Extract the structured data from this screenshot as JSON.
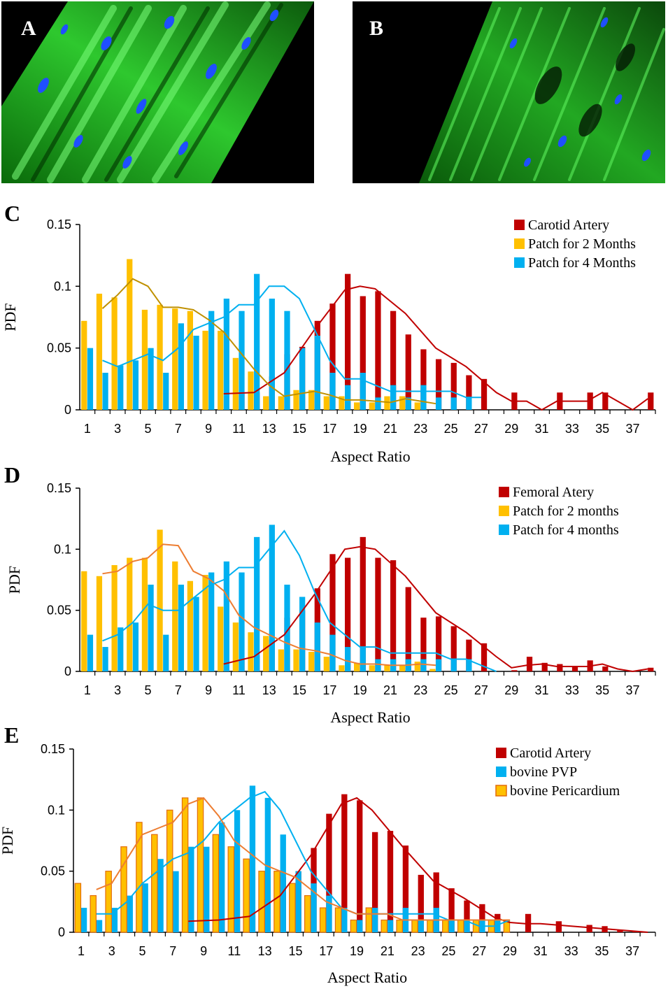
{
  "images": {
    "a": {
      "label": "A"
    },
    "b": {
      "label": "B"
    }
  },
  "colors": {
    "carotid": "#C00000",
    "patch2": "#FFC000",
    "patch4": "#00B0F0",
    "pvp": "#00B0F0",
    "pericardium": "#FFC000",
    "pericardium_border": "#E36C09",
    "fit_patch2_c": "#BF9000",
    "fit_patch2_d": "#ED7D31",
    "fit_pericardium": "#ED7D31",
    "fit_red": "#C00000",
    "fit_blue": "#00B0F0"
  },
  "chart_data": [
    {
      "type": "bar",
      "panel": "C",
      "xlabel": "Aspect Ratio",
      "ylabel": "PDF",
      "ylim": [
        0,
        0.15
      ],
      "yticks": [
        "0",
        "0.05",
        "0.1",
        "0.15"
      ],
      "xlim": [
        0.5,
        38.5
      ],
      "xticks": [
        1,
        3,
        5,
        7,
        9,
        11,
        13,
        15,
        17,
        19,
        21,
        23,
        25,
        27,
        29,
        31,
        33,
        35,
        37
      ],
      "legend_position": "top-right",
      "series": [
        {
          "name": "Carotid Artery",
          "color_key": "carotid",
          "x": [
            11,
            12,
            13,
            14,
            15,
            16,
            17,
            18,
            19,
            20,
            21,
            22,
            23,
            24,
            25,
            26,
            27,
            29,
            32,
            34,
            35,
            38
          ],
          "values": [
            0.014,
            0.014,
            0.027,
            0.045,
            0.051,
            0.072,
            0.086,
            0.11,
            0.092,
            0.096,
            0.08,
            0.061,
            0.049,
            0.041,
            0.038,
            0.028,
            0.025,
            0.014,
            0.014,
            0.014,
            0.014,
            0.014
          ],
          "fit_x": [
            10,
            12,
            14,
            16,
            18,
            19,
            20,
            22,
            24,
            26,
            28,
            29,
            30,
            31,
            32,
            34,
            35,
            36,
            37,
            38
          ],
          "fit": [
            0.013,
            0.014,
            0.03,
            0.065,
            0.097,
            0.1,
            0.098,
            0.078,
            0.05,
            0.035,
            0.014,
            0.007,
            0.007,
            0.0,
            0.007,
            0.007,
            0.014,
            0.007,
            0.0,
            0.009
          ],
          "fit_color_key": "fit_red"
        },
        {
          "name": "Patch for 2 Months",
          "color_key": "patch2",
          "x": [
            1,
            2,
            3,
            4,
            5,
            6,
            7,
            8,
            9,
            10,
            11,
            12,
            13,
            14,
            15,
            16,
            17,
            18,
            19,
            20,
            21,
            22,
            23
          ],
          "values": [
            0.072,
            0.094,
            0.091,
            0.122,
            0.081,
            0.085,
            0.082,
            0.08,
            0.064,
            0.064,
            0.042,
            0.031,
            0.011,
            0.011,
            0.016,
            0.016,
            0.011,
            0.011,
            0.006,
            0.006,
            0.011,
            0.011,
            0.006
          ],
          "fit_x": [
            2,
            3,
            4,
            5,
            6,
            7,
            8,
            9,
            10,
            11,
            12,
            13,
            14,
            15,
            16,
            17,
            18,
            19,
            20,
            21,
            22,
            23,
            24
          ],
          "fit": [
            0.082,
            0.093,
            0.106,
            0.1,
            0.083,
            0.083,
            0.081,
            0.073,
            0.063,
            0.048,
            0.033,
            0.02,
            0.011,
            0.013,
            0.015,
            0.012,
            0.008,
            0.008,
            0.007,
            0.006,
            0.009,
            0.007,
            0.005
          ],
          "fit_color_key": "fit_patch2_c"
        },
        {
          "name": "Patch for 4 Months",
          "color_key": "patch4",
          "x": [
            1,
            2,
            3,
            4,
            5,
            6,
            7,
            8,
            9,
            10,
            11,
            12,
            13,
            14,
            15,
            16,
            17,
            18,
            19,
            20,
            21,
            22,
            23,
            24,
            25,
            26
          ],
          "values": [
            0.05,
            0.03,
            0.036,
            0.04,
            0.05,
            0.03,
            0.07,
            0.06,
            0.08,
            0.09,
            0.08,
            0.11,
            0.09,
            0.08,
            0.05,
            0.06,
            0.03,
            0.02,
            0.03,
            0.01,
            0.02,
            0.01,
            0.02,
            0.01,
            0.01,
            0.01
          ],
          "fit_x": [
            2,
            3,
            4,
            5,
            6,
            7,
            8,
            9,
            10,
            11,
            12,
            13,
            14,
            15,
            16,
            17,
            18,
            19,
            20,
            21,
            22,
            23,
            24,
            25,
            26,
            27
          ],
          "fit": [
            0.04,
            0.035,
            0.04,
            0.045,
            0.04,
            0.05,
            0.065,
            0.07,
            0.075,
            0.085,
            0.085,
            0.1,
            0.1,
            0.09,
            0.065,
            0.04,
            0.025,
            0.025,
            0.02,
            0.015,
            0.015,
            0.015,
            0.015,
            0.015,
            0.01,
            0.01
          ],
          "fit_color_key": "fit_blue"
        }
      ]
    },
    {
      "type": "bar",
      "panel": "D",
      "xlabel": "Aspect Ratio",
      "ylabel": "PDF",
      "ylim": [
        0,
        0.15
      ],
      "yticks": [
        "0",
        "0.05",
        "0.1",
        "0.15"
      ],
      "xlim": [
        0.5,
        38.5
      ],
      "xticks": [
        1,
        3,
        5,
        7,
        9,
        11,
        13,
        15,
        17,
        19,
        21,
        23,
        25,
        27,
        29,
        31,
        33,
        35,
        37
      ],
      "legend_position": "top-right",
      "series": [
        {
          "name": "Femoral Atery",
          "color_key": "carotid",
          "x": [
            10,
            11,
            12,
            13,
            14,
            15,
            16,
            17,
            18,
            19,
            20,
            21,
            22,
            23,
            24,
            25,
            26,
            27,
            29,
            30,
            31,
            32,
            33,
            34,
            35,
            38
          ],
          "values": [
            0.007,
            0.01,
            0.013,
            0.026,
            0.044,
            0.05,
            0.068,
            0.096,
            0.093,
            0.11,
            0.093,
            0.091,
            0.069,
            0.044,
            0.045,
            0.037,
            0.026,
            0.023,
            0.001,
            0.012,
            0.007,
            0.006,
            0.004,
            0.009,
            0.004,
            0.003
          ],
          "fit_x": [
            10,
            12,
            14,
            16,
            18,
            19,
            20,
            22,
            24,
            26,
            28,
            29,
            30,
            31,
            32,
            34,
            35,
            36,
            37,
            38
          ],
          "fit": [
            0.006,
            0.012,
            0.03,
            0.063,
            0.1,
            0.102,
            0.1,
            0.078,
            0.048,
            0.032,
            0.012,
            0.003,
            0.005,
            0.006,
            0.004,
            0.004,
            0.006,
            0.002,
            0.0,
            0.002
          ],
          "fit_color_key": "fit_red"
        },
        {
          "name": "Patch for 2 months",
          "color_key": "patch2",
          "x": [
            1,
            2,
            3,
            4,
            5,
            6,
            7,
            8,
            9,
            10,
            11,
            12,
            13,
            14,
            15,
            16,
            17,
            18,
            19,
            20,
            21,
            22,
            23,
            24
          ],
          "values": [
            0.082,
            0.078,
            0.087,
            0.093,
            0.093,
            0.116,
            0.09,
            0.074,
            0.079,
            0.053,
            0.04,
            0.032,
            0.029,
            0.018,
            0.018,
            0.016,
            0.012,
            0.005,
            0.007,
            0.005,
            0.005,
            0.005,
            0.008,
            0.002
          ],
          "fit_x": [
            2,
            3,
            4,
            5,
            6,
            7,
            8,
            9,
            10,
            11,
            12,
            13,
            14,
            15,
            16,
            17,
            18,
            19,
            20,
            21,
            22,
            23,
            24
          ],
          "fit": [
            0.08,
            0.082,
            0.09,
            0.093,
            0.104,
            0.103,
            0.082,
            0.076,
            0.066,
            0.046,
            0.036,
            0.03,
            0.024,
            0.019,
            0.017,
            0.014,
            0.009,
            0.006,
            0.006,
            0.005,
            0.005,
            0.006,
            0.005
          ],
          "fit_color_key": "fit_patch2_d"
        },
        {
          "name": "Patch for 4 months",
          "color_key": "patch4",
          "x": [
            1,
            2,
            3,
            4,
            5,
            6,
            7,
            8,
            9,
            10,
            11,
            12,
            13,
            14,
            15,
            16,
            17,
            18,
            19,
            20,
            21,
            22,
            23,
            24,
            25,
            26
          ],
          "values": [
            0.03,
            0.02,
            0.036,
            0.04,
            0.071,
            0.03,
            0.071,
            0.061,
            0.081,
            0.09,
            0.081,
            0.11,
            0.12,
            0.071,
            0.061,
            0.04,
            0.03,
            0.02,
            0.02,
            0.01,
            0.01,
            0.01,
            0.01,
            0.01,
            0.01,
            0.01
          ],
          "fit_x": [
            2,
            3,
            4,
            5,
            6,
            7,
            8,
            9,
            10,
            11,
            12,
            13,
            14,
            15,
            16,
            17,
            18,
            19,
            20,
            21,
            22,
            23,
            24,
            25,
            26,
            27,
            28
          ],
          "fit": [
            0.025,
            0.03,
            0.04,
            0.055,
            0.05,
            0.05,
            0.06,
            0.07,
            0.075,
            0.085,
            0.085,
            0.1,
            0.115,
            0.095,
            0.065,
            0.04,
            0.03,
            0.02,
            0.02,
            0.015,
            0.015,
            0.015,
            0.015,
            0.01,
            0.01,
            0.005,
            0.0
          ],
          "fit_color_key": "fit_blue"
        }
      ]
    },
    {
      "type": "bar",
      "panel": "E",
      "xlabel": "Aspect Ratio",
      "ylabel": "PDF",
      "ylim": [
        0,
        0.15
      ],
      "yticks": [
        "0",
        "0.05",
        "0.1",
        "0.15"
      ],
      "xlim": [
        0.5,
        38.5
      ],
      "xticks": [
        1,
        3,
        5,
        7,
        9,
        11,
        13,
        15,
        17,
        19,
        21,
        23,
        25,
        27,
        29,
        31,
        33,
        35,
        37
      ],
      "legend_position": "top-right",
      "series": [
        {
          "name": "Carotid Artery",
          "color_key": "carotid",
          "x": [
            8,
            9,
            10,
            11,
            12,
            13,
            14,
            15,
            16,
            17,
            18,
            19,
            20,
            21,
            22,
            23,
            24,
            25,
            26,
            27,
            28,
            30,
            32,
            34,
            35,
            36,
            37
          ],
          "values": [
            0.009,
            0.009,
            0.011,
            0.012,
            0.014,
            0.027,
            0.045,
            0.05,
            0.069,
            0.097,
            0.113,
            0.108,
            0.082,
            0.083,
            0.071,
            0.047,
            0.049,
            0.036,
            0.026,
            0.023,
            0.015,
            0.015,
            0.009,
            0.006,
            0.005,
            0.002,
            0.001
          ],
          "fit_x": [
            8,
            10,
            12,
            14,
            16,
            18,
            19,
            20,
            22,
            24,
            26,
            28,
            29,
            30,
            31,
            32,
            34,
            36,
            38
          ],
          "fit": [
            0.009,
            0.01,
            0.013,
            0.03,
            0.063,
            0.105,
            0.11,
            0.1,
            0.07,
            0.042,
            0.028,
            0.012,
            0.008,
            0.007,
            0.007,
            0.006,
            0.004,
            0.002,
            0.0
          ],
          "fit_color_key": "fit_red"
        },
        {
          "name": "bovine PVP",
          "color_key": "pvp",
          "x": [
            1,
            2,
            3,
            4,
            5,
            6,
            7,
            8,
            9,
            10,
            11,
            12,
            13,
            14,
            15,
            16,
            17,
            18,
            19,
            20,
            21,
            22,
            23,
            24,
            25,
            26,
            27,
            28
          ],
          "values": [
            0.02,
            0.01,
            0.02,
            0.03,
            0.04,
            0.06,
            0.05,
            0.07,
            0.07,
            0.09,
            0.1,
            0.12,
            0.11,
            0.08,
            0.05,
            0.04,
            0.03,
            0.02,
            0.01,
            0.02,
            0.01,
            0.02,
            0.01,
            0.02,
            0.01,
            0.01,
            0.01,
            0.01
          ],
          "fit_x": [
            2,
            3,
            4,
            5,
            6,
            7,
            8,
            9,
            10,
            11,
            12,
            13,
            14,
            15,
            16,
            17,
            18,
            19,
            20,
            21,
            22,
            23,
            24,
            25,
            26,
            27,
            28,
            29
          ],
          "fit": [
            0.015,
            0.015,
            0.025,
            0.04,
            0.05,
            0.06,
            0.065,
            0.075,
            0.09,
            0.1,
            0.11,
            0.115,
            0.1,
            0.075,
            0.05,
            0.035,
            0.02,
            0.015,
            0.015,
            0.015,
            0.015,
            0.015,
            0.015,
            0.01,
            0.01,
            0.005,
            0.005,
            0.01
          ],
          "fit_color_key": "fit_blue"
        },
        {
          "name": "bovine Pericardium",
          "color_key": "pericardium",
          "x": [
            1,
            2,
            3,
            4,
            5,
            6,
            7,
            8,
            9,
            10,
            11,
            12,
            13,
            14,
            15,
            16,
            17,
            18,
            19,
            20,
            21,
            22,
            23,
            24,
            25,
            26,
            27,
            28,
            29
          ],
          "values": [
            0.04,
            0.03,
            0.05,
            0.07,
            0.09,
            0.08,
            0.1,
            0.11,
            0.11,
            0.08,
            0.07,
            0.06,
            0.05,
            0.05,
            0.04,
            0.03,
            0.02,
            0.02,
            0.01,
            0.02,
            0.01,
            0.01,
            0.01,
            0.01,
            0.01,
            0.01,
            0.01,
            0.01,
            0.01
          ],
          "fit_x": [
            2,
            3,
            4,
            5,
            6,
            7,
            8,
            9,
            10,
            11,
            12,
            13,
            14,
            15,
            16,
            17,
            18,
            19,
            20,
            21,
            22,
            23,
            24,
            25,
            26,
            27,
            28,
            29
          ],
          "fit": [
            0.035,
            0.04,
            0.06,
            0.08,
            0.085,
            0.09,
            0.105,
            0.11,
            0.095,
            0.075,
            0.065,
            0.055,
            0.05,
            0.045,
            0.035,
            0.025,
            0.02,
            0.015,
            0.015,
            0.015,
            0.01,
            0.01,
            0.01,
            0.01,
            0.01,
            0.01,
            0.01,
            0.01
          ],
          "fit_color_key": "fit_pericardium"
        }
      ]
    }
  ]
}
